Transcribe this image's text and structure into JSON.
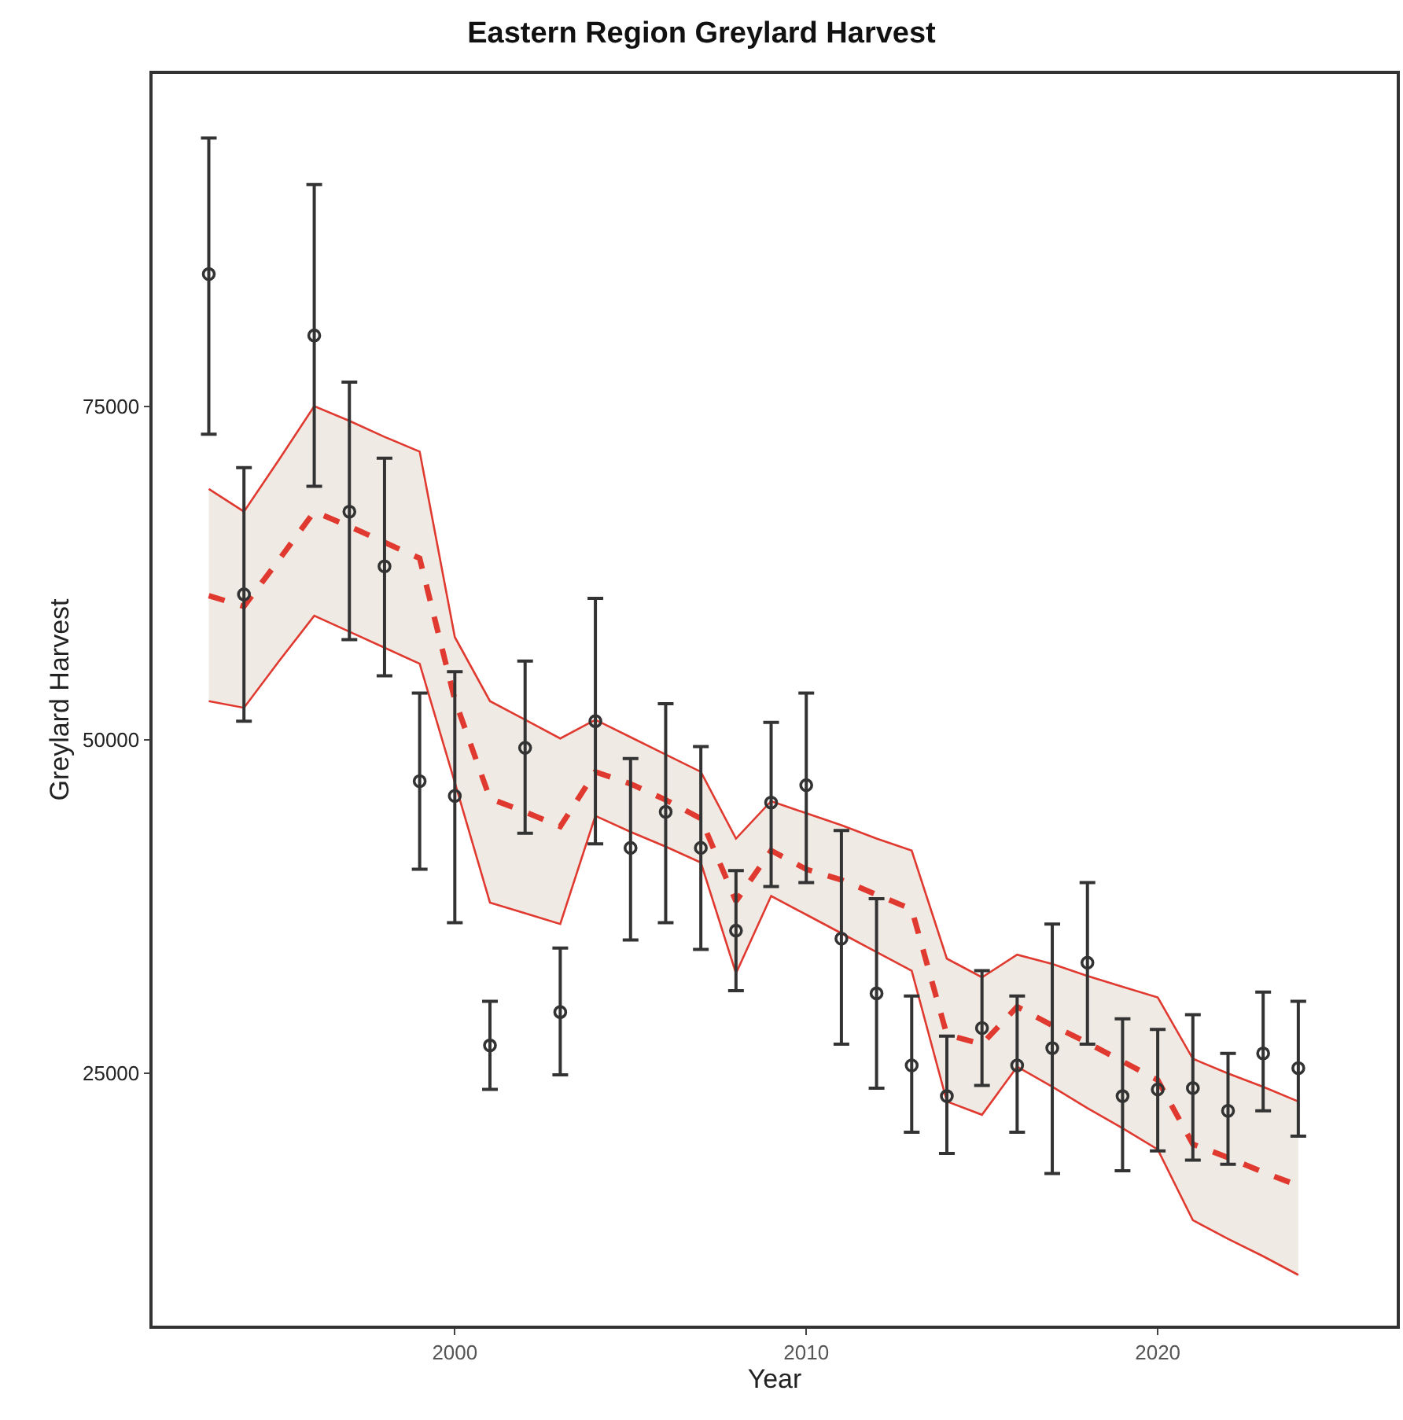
{
  "chart_data": {
    "type": "line",
    "title": "Eastern Region Greylard Harvest",
    "xlabel": "Year",
    "ylabel": "Greylard Harvest",
    "xlim": [
      1991.4,
      2026.8
    ],
    "xticks": [
      2000,
      2010,
      2020
    ],
    "ylim": [
      6100,
      99900
    ],
    "yticks": [
      25000,
      50000,
      75000
    ],
    "grid": false,
    "series": [
      {
        "type": "line",
        "color": "#e0392f",
        "line_style": "dashed",
        "marker": "none",
        "x": [
          1993,
          1994,
          1995,
          1996,
          1997,
          1998,
          1999,
          2000,
          2001,
          2002,
          2003,
          2004,
          2005,
          2006,
          2007,
          2008,
          2009,
          2010,
          2011,
          2012,
          2013,
          2014,
          2015,
          2016,
          2017,
          2018,
          2019,
          2020,
          2021,
          2022,
          2023,
          2024
        ],
        "values": [
          60800,
          60000,
          63500,
          67100,
          66000,
          64800,
          63600,
          53000,
          45600,
          44600,
          43500,
          47600,
          46700,
          45500,
          44100,
          37900,
          41700,
          40300,
          39500,
          38400,
          37300,
          27900,
          27200,
          30000,
          28600,
          27300,
          25900,
          24500,
          19700,
          18700,
          17600,
          16600
        ],
        "upper": [
          68800,
          67100,
          71000,
          75000,
          73900,
          72700,
          71600,
          57700,
          52900,
          51500,
          50100,
          51500,
          50200,
          48900,
          47600,
          42600,
          45400,
          44500,
          43600,
          42600,
          41700,
          33600,
          32200,
          33900,
          33200,
          32300,
          31500,
          30700,
          26100,
          25000,
          24000,
          22900
        ],
        "lower": [
          52900,
          52400,
          55900,
          59300,
          58100,
          56900,
          55700,
          46800,
          37800,
          37000,
          36200,
          44300,
          43100,
          42000,
          40800,
          32500,
          38300,
          36900,
          35500,
          34100,
          32700,
          22900,
          21900,
          25500,
          24000,
          22400,
          20900,
          19300,
          14000,
          12600,
          11300,
          9900
        ]
      },
      {
        "color": "#e0392f",
        "line_style": "solid",
        "marker": "none",
        "x": [
          1993,
          1994,
          1995,
          1996,
          1997,
          1998,
          1999,
          2000,
          2001,
          2002,
          2003,
          2004,
          2005,
          2006,
          2007,
          2008,
          2009,
          2010,
          2011,
          2012,
          2013,
          2014,
          2015,
          2016,
          2017,
          2018,
          2019,
          2020,
          2021,
          2022,
          2023,
          2024
        ],
        "values": [
          68800,
          67100,
          71000,
          75000,
          73900,
          72700,
          71600,
          57700,
          52900,
          51500,
          50100,
          51500,
          50200,
          48900,
          47600,
          42600,
          45400,
          44500,
          43600,
          42600,
          41700,
          33600,
          32200,
          33900,
          33200,
          32300,
          31500,
          30700,
          26100,
          25000,
          24000,
          22900
        ]
      },
      {
        "color": "#e0392f",
        "line_style": "solid",
        "marker": "none",
        "x": [
          1993,
          1994,
          1995,
          1996,
          1997,
          1998,
          1999,
          2000,
          2001,
          2002,
          2003,
          2004,
          2005,
          2006,
          2007,
          2008,
          2009,
          2010,
          2011,
          2012,
          2013,
          2014,
          2015,
          2016,
          2017,
          2018,
          2019,
          2020,
          2021,
          2022,
          2023,
          2024
        ],
        "values": [
          52900,
          52400,
          55900,
          59300,
          58100,
          56900,
          55700,
          46800,
          37800,
          37000,
          36200,
          44300,
          43100,
          42000,
          40800,
          32500,
          38300,
          36900,
          35500,
          34100,
          32700,
          22900,
          21900,
          25500,
          24000,
          22400,
          20900,
          19300,
          14000,
          12600,
          11300,
          9900
        ]
      },
      {
        "type": "scatter",
        "color": "#333333",
        "marker": "circle",
        "x": [
          1993,
          1994,
          1996,
          1997,
          1998,
          1999,
          2000,
          2001,
          2002,
          2003,
          2004,
          2005,
          2006,
          2007,
          2008,
          2009,
          2010,
          2011,
          2012,
          2013,
          2014,
          2015,
          2016,
          2017,
          2018,
          2019,
          2020,
          2021,
          2022,
          2023,
          2024
        ],
        "values": [
          84900,
          60900,
          80300,
          67100,
          63000,
          46900,
          45800,
          27100,
          49400,
          29600,
          51400,
          41900,
          44600,
          41900,
          35700,
          45300,
          46600,
          35100,
          31000,
          25600,
          23300,
          28400,
          25600,
          26900,
          33300,
          23300,
          23800,
          23900,
          22200,
          26500,
          25400
        ],
        "errors": [
          [
            72900,
            95100
          ],
          [
            51400,
            70400
          ],
          [
            69000,
            91600
          ],
          [
            57500,
            76800
          ],
          [
            54800,
            71100
          ],
          [
            40300,
            53500
          ],
          [
            36300,
            55100
          ],
          [
            23800,
            30400
          ],
          [
            43000,
            55900
          ],
          [
            24900,
            34400
          ],
          [
            42200,
            60600
          ],
          [
            35000,
            48600
          ],
          [
            36300,
            52700
          ],
          [
            34300,
            49500
          ],
          [
            31200,
            40200
          ],
          [
            39000,
            51300
          ],
          [
            39300,
            53500
          ],
          [
            27200,
            43200
          ],
          [
            23900,
            38100
          ],
          [
            20600,
            30800
          ],
          [
            19000,
            27800
          ],
          [
            24100,
            32700
          ],
          [
            20600,
            30800
          ],
          [
            17500,
            36200
          ],
          [
            27200,
            39300
          ],
          [
            17700,
            29100
          ],
          [
            19200,
            28300
          ],
          [
            18500,
            29400
          ],
          [
            18200,
            26500
          ],
          [
            22200,
            31100
          ],
          [
            20300,
            30400
          ]
        ]
      }
    ]
  }
}
